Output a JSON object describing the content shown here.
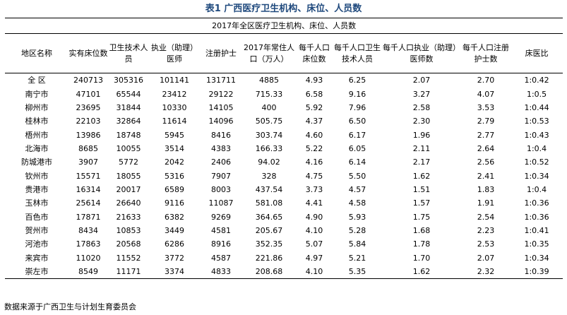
{
  "title": "表1 广西医疗卫生机构、床位、人员数",
  "subtitle": "2017年全区医疗卫生机构、床位、人员数",
  "columns": [
    "地区名称",
    "实有床位数",
    "卫生技术人员",
    "执业（助理）医师",
    "注册护士",
    "2017年常住人口（万人）",
    "每千人口床位数",
    "每千人口卫生技术人员",
    "每千人口执业（助理）医师数",
    "每千人口注册护士数",
    "床医比"
  ],
  "rows": [
    [
      "全 区",
      "240713",
      "305316",
      "101141",
      "131711",
      "4885",
      "4.93",
      "6.25",
      "2.07",
      "2.70",
      "1:0.42"
    ],
    [
      "南宁市",
      "47101",
      "65544",
      "23412",
      "29122",
      "715.33",
      "6.58",
      "9.16",
      "3.27",
      "4.07",
      "1:0.5"
    ],
    [
      "柳州市",
      "23695",
      "31844",
      "10330",
      "14105",
      "400",
      "5.92",
      "7.96",
      "2.58",
      "3.53",
      "1:0.44"
    ],
    [
      "桂林市",
      "22103",
      "32864",
      "11614",
      "14096",
      "505.75",
      "4.37",
      "6.50",
      "2.30",
      "2.79",
      "1:0.53"
    ],
    [
      "梧州市",
      "13986",
      "18748",
      "5945",
      "8416",
      "303.74",
      "4.60",
      "6.17",
      "1.96",
      "2.77",
      "1:0.43"
    ],
    [
      "北海市",
      "8685",
      "10055",
      "3514",
      "4383",
      "166.33",
      "5.22",
      "6.05",
      "2.11",
      "2.64",
      "1:0.4"
    ],
    [
      "防城港市",
      "3907",
      "5772",
      "2042",
      "2406",
      "94.02",
      "4.16",
      "6.14",
      "2.17",
      "2.56",
      "1:0.52"
    ],
    [
      "钦州市",
      "15571",
      "18055",
      "5316",
      "7907",
      "328",
      "4.75",
      "5.50",
      "1.62",
      "2.41",
      "1:0.34"
    ],
    [
      "贵港市",
      "16314",
      "20017",
      "6589",
      "8003",
      "437.54",
      "3.73",
      "4.57",
      "1.51",
      "1.83",
      "1:0.4"
    ],
    [
      "玉林市",
      "25614",
      "26640",
      "9116",
      "11087",
      "581.08",
      "4.41",
      "4.58",
      "1.57",
      "1.91",
      "1:0.36"
    ],
    [
      "百色市",
      "17871",
      "21633",
      "6382",
      "9269",
      "364.65",
      "4.90",
      "5.93",
      "1.75",
      "2.54",
      "1:0.36"
    ],
    [
      "贺州市",
      "8434",
      "10853",
      "3449",
      "4581",
      "205.67",
      "4.10",
      "5.28",
      "1.68",
      "2.23",
      "1:0.41"
    ],
    [
      "河池市",
      "17863",
      "20568",
      "6286",
      "8916",
      "352.35",
      "5.07",
      "5.84",
      "1.78",
      "2.53",
      "1:0.35"
    ],
    [
      "来宾市",
      "11020",
      "11552",
      "3772",
      "4587",
      "221.86",
      "4.97",
      "5.21",
      "1.70",
      "2.07",
      "1:0.34"
    ],
    [
      "崇左市",
      "8549",
      "11171",
      "3374",
      "4833",
      "208.68",
      "4.10",
      "5.35",
      "1.62",
      "2.32",
      "1:0.39"
    ]
  ],
  "footnote": "数据来源于广西卫生与计划生育委员会",
  "colors": {
    "title": "#1f497d",
    "text": "#000000",
    "rule": "#000000"
  }
}
